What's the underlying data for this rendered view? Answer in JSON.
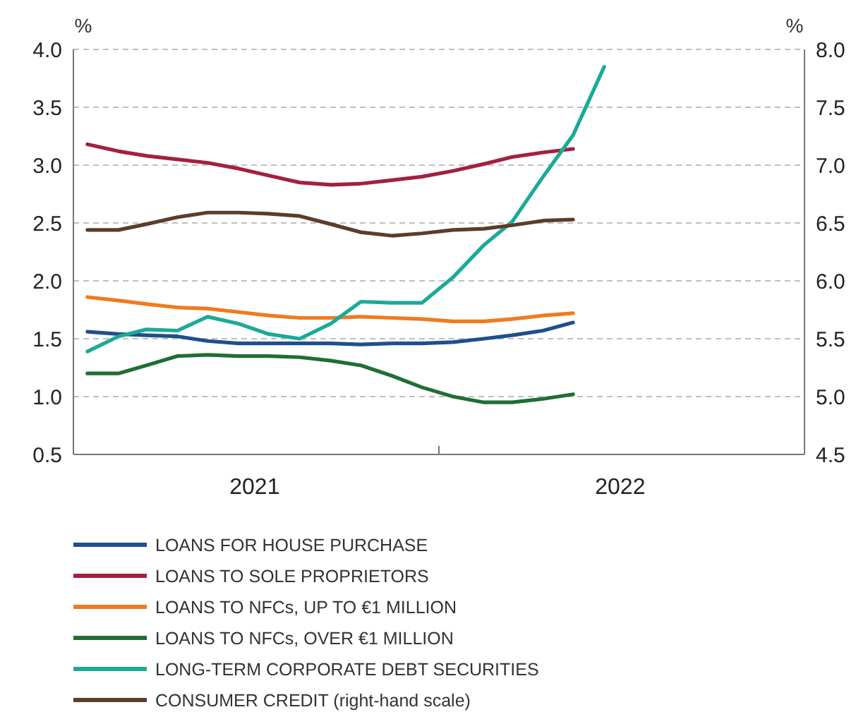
{
  "chart_data": {
    "type": "line",
    "ylabel": "%",
    "y2label": "%",
    "x": [
      "2021-01-15",
      "2021-02-15",
      "2021-03-15",
      "2021-04-15",
      "2021-05-15",
      "2021-06-15",
      "2021-07-15",
      "2021-08-15",
      "2021-09-15",
      "2021-10-15",
      "2021-11-15",
      "2021-12-15",
      "2022-01-15",
      "2022-02-15",
      "2022-03-15",
      "2022-04-15",
      "2022-05-15"
    ],
    "xlim": [
      "2021-01-01",
      "2023-01-01"
    ],
    "xticks": [
      {
        "value": "2021-07-01",
        "label": "2021"
      },
      {
        "value": "2022-01-01",
        "label": null
      },
      {
        "value": "2022-07-01",
        "label": "2022"
      }
    ],
    "ylim": [
      0.5,
      4.0
    ],
    "yticks": [
      {
        "value": 0.5,
        "label": "0.5"
      },
      {
        "value": 1.0,
        "label": "1.0"
      },
      {
        "value": 1.5,
        "label": "1.5"
      },
      {
        "value": 2.0,
        "label": "2.0"
      },
      {
        "value": 2.5,
        "label": "2.5"
      },
      {
        "value": 3.0,
        "label": "3.0"
      },
      {
        "value": 3.5,
        "label": "3.5"
      },
      {
        "value": 4.0,
        "label": "4.0"
      }
    ],
    "y2lim": [
      4.5,
      8.0
    ],
    "y2ticks": [
      {
        "value": 4.5,
        "label": "4.5"
      },
      {
        "value": 5.0,
        "label": "5.0"
      },
      {
        "value": 5.5,
        "label": "5.5"
      },
      {
        "value": 6.0,
        "label": "6.0"
      },
      {
        "value": 6.5,
        "label": "6.5"
      },
      {
        "value": 7.0,
        "label": "7.0"
      },
      {
        "value": 7.5,
        "label": "7.5"
      },
      {
        "value": 8.0,
        "label": "8.0"
      }
    ],
    "grid": "y",
    "legend": "bottom",
    "line_style": "solid",
    "marker": "none",
    "series": [
      {
        "name": "LOANS FOR HOUSE PURCHASE",
        "color": "#1f4e8c",
        "values": [
          1.56,
          1.54,
          1.53,
          1.52,
          1.48,
          1.46,
          1.46,
          1.46,
          1.46,
          1.45,
          1.46,
          1.46,
          1.47,
          1.5,
          1.53,
          1.57,
          1.64
        ]
      },
      {
        "name": "LOANS TO SOLE PROPRIETORS",
        "color": "#a3203f",
        "values": [
          3.18,
          3.12,
          3.08,
          3.05,
          3.02,
          2.97,
          2.91,
          2.85,
          2.83,
          2.84,
          2.87,
          2.9,
          2.95,
          3.01,
          3.07,
          3.11,
          3.14
        ]
      },
      {
        "name": "LOANS TO NFCs, UP TO €1 MILLION",
        "color": "#f07a1e",
        "values": [
          1.86,
          1.83,
          1.8,
          1.77,
          1.76,
          1.73,
          1.7,
          1.68,
          1.68,
          1.69,
          1.68,
          1.67,
          1.65,
          1.65,
          1.67,
          1.7,
          1.72
        ]
      },
      {
        "name": "LOANS TO NFCs, OVER €1 MILLION",
        "color": "#1f6e35",
        "values": [
          1.2,
          1.2,
          1.27,
          1.35,
          1.36,
          1.35,
          1.35,
          1.34,
          1.31,
          1.27,
          1.18,
          1.08,
          1.0,
          0.95,
          0.95,
          0.98,
          1.02
        ]
      },
      {
        "name": "LONG-TERM CORPORATE DEBT SECURITIES",
        "color": "#1aaa98",
        "x": [
          "2021-01-15",
          "2021-02-15",
          "2021-03-15",
          "2021-04-15",
          "2021-05-15",
          "2021-06-15",
          "2021-07-15",
          "2021-08-15",
          "2021-09-15",
          "2021-10-15",
          "2021-11-15",
          "2021-12-15",
          "2022-01-15",
          "2022-02-15",
          "2022-03-15",
          "2022-04-15",
          "2022-05-15",
          "2022-06-15"
        ],
        "values": [
          1.39,
          1.52,
          1.58,
          1.57,
          1.69,
          1.63,
          1.54,
          1.5,
          1.63,
          1.82,
          1.81,
          1.81,
          2.03,
          2.31,
          2.51,
          2.9,
          3.26,
          3.85
        ]
      },
      {
        "name": "CONSUMER CREDIT (right-hand scale)",
        "color": "#5a3d2b",
        "axis": "y2",
        "values": [
          6.44,
          6.44,
          6.49,
          6.55,
          6.59,
          6.59,
          6.58,
          6.56,
          6.49,
          6.42,
          6.39,
          6.41,
          6.44,
          6.45,
          6.48,
          6.52,
          6.53
        ]
      }
    ]
  }
}
